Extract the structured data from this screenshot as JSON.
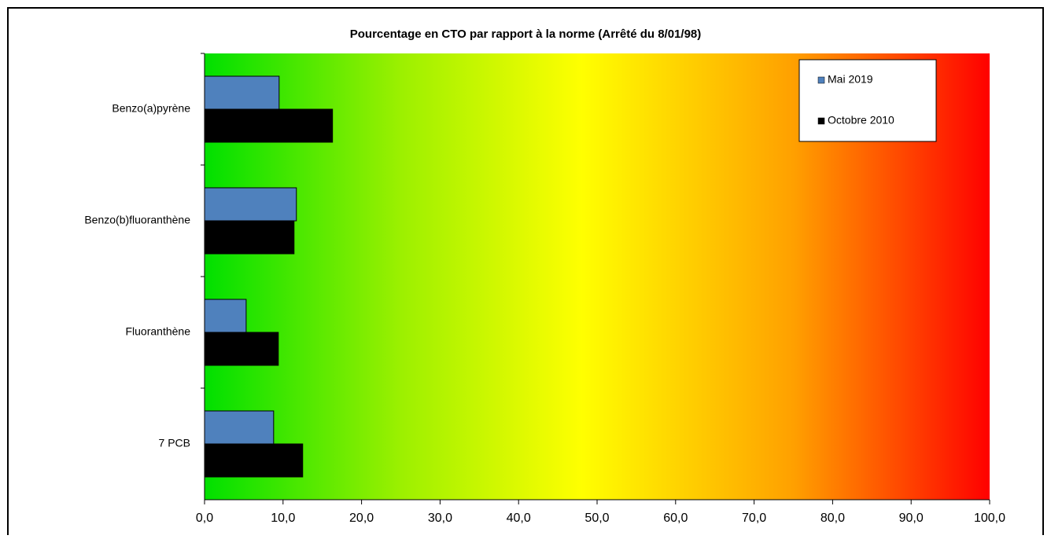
{
  "chart_data": {
    "type": "barh",
    "title": "Pourcentage  en CTO par rapport à la norme (Arrêté du 8/01/98)",
    "categories": [
      "Benzo(a)pyrène",
      "Benzo(b)fluoranthène",
      "Fluoranthène",
      "7 PCB"
    ],
    "series": [
      {
        "name": "Mai 2019",
        "color": "#4f81bd",
        "values": [
          9.5,
          11.7,
          5.3,
          8.8
        ]
      },
      {
        "name": "Octobre 2010",
        "color": "#000000",
        "values": [
          16.3,
          11.4,
          9.4,
          12.5
        ]
      }
    ],
    "xlim": [
      0,
      100
    ],
    "xticks": [
      {
        "value": 0,
        "label": "0,0"
      },
      {
        "value": 10,
        "label": "10,0"
      },
      {
        "value": 20,
        "label": "20,0"
      },
      {
        "value": 30,
        "label": "30,0"
      },
      {
        "value": 40,
        "label": "40,0"
      },
      {
        "value": 50,
        "label": "50,0"
      },
      {
        "value": 60,
        "label": "60,0"
      },
      {
        "value": 70,
        "label": "70,0"
      },
      {
        "value": 80,
        "label": "80,0"
      },
      {
        "value": 90,
        "label": "90,0"
      },
      {
        "value": 100,
        "label": "100,0"
      }
    ],
    "legend": "upper right"
  }
}
